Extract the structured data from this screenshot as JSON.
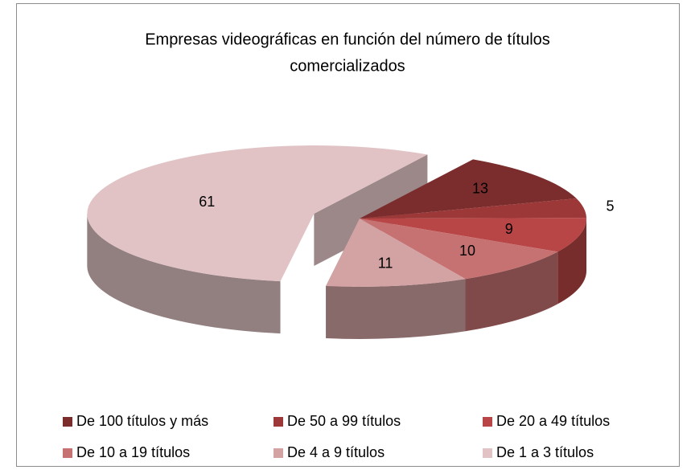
{
  "chart_data": {
    "type": "pie3d",
    "title": [
      "Empresas videográficas en función del número de títulos",
      "comercializados"
    ],
    "categories": [
      "De 100 títulos y más",
      "De 50 a 99 títulos",
      "De 20 a 49 títulos",
      "De 10 a 19 títulos",
      "De 4 a 9 títulos",
      "De 1 a 3 títulos"
    ],
    "values": [
      13,
      5,
      9,
      10,
      11,
      61
    ],
    "colors": [
      "#7b2c2c",
      "#9c3838",
      "#b94646",
      "#c77272",
      "#d3a3a4",
      "#e1c3c5"
    ],
    "legend": "bottom"
  }
}
